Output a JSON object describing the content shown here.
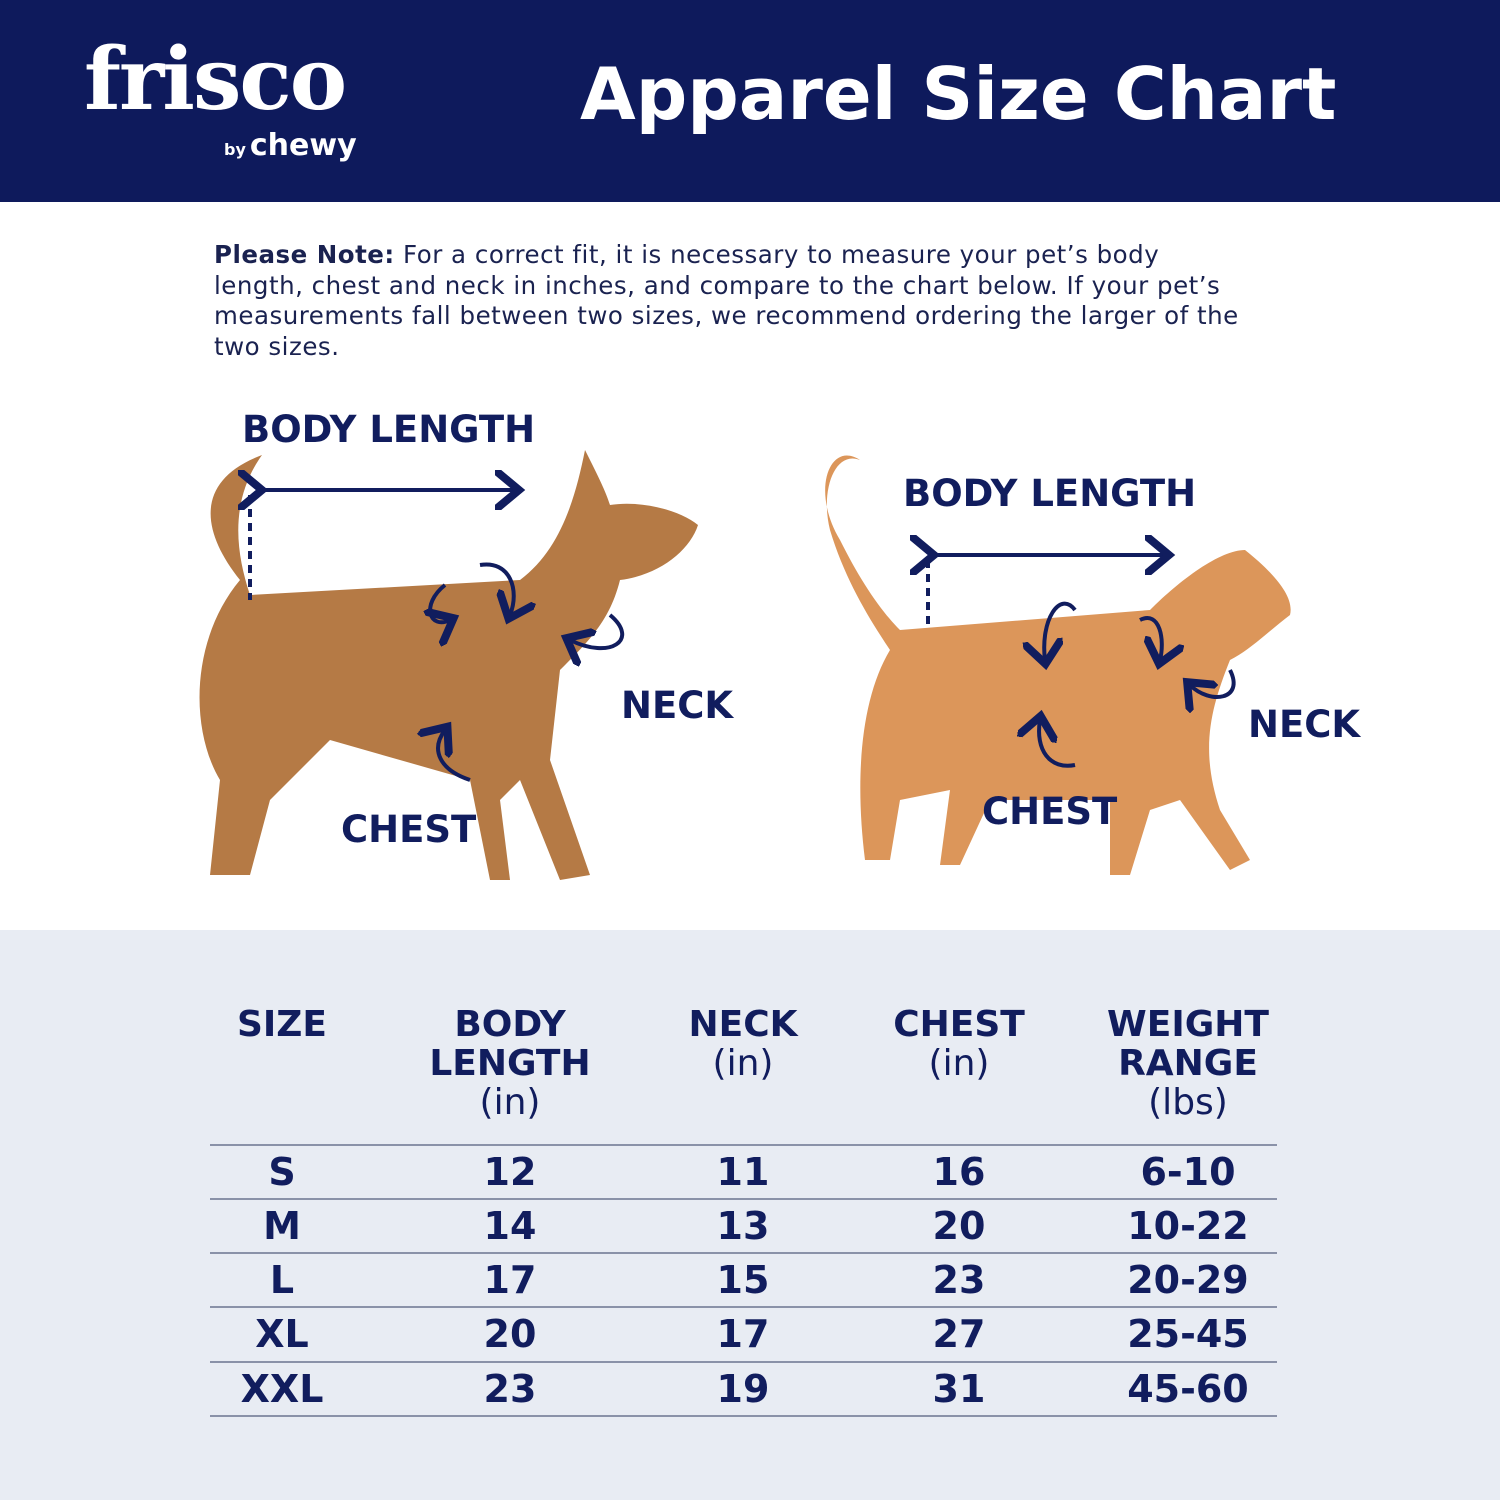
{
  "header": {
    "logo_text": "frisco",
    "logo_sub_by": "by",
    "logo_sub_brand": "chewy",
    "title": "Apparel Size Chart",
    "background": "#0e1a5c"
  },
  "note": {
    "lead": "Please Note:",
    "text": " For a correct fit, it is necessary to measure your pet’s body length, chest and neck in inches, and compare to the chart below. If your pet’s measurements fall between two sizes, we recommend ordering the larger of the two sizes."
  },
  "diagram": {
    "dog": {
      "body_length": "BODY LENGTH",
      "neck": "NECK",
      "chest": "CHEST"
    },
    "cat": {
      "body_length": "BODY LENGTH",
      "neck": "NECK",
      "chest": "CHEST"
    }
  },
  "table": {
    "headers": [
      {
        "title": "SIZE",
        "unit": ""
      },
      {
        "title": "BODY LENGTH",
        "unit": "(in)"
      },
      {
        "title": "NECK",
        "unit": "(in)"
      },
      {
        "title": "CHEST",
        "unit": "(in)"
      },
      {
        "title": "WEIGHT RANGE",
        "unit": "(lbs)"
      }
    ],
    "rows": [
      [
        "S",
        "12",
        "11",
        "16",
        "6-10"
      ],
      [
        "M",
        "14",
        "13",
        "20",
        "10-22"
      ],
      [
        "L",
        "17",
        "15",
        "23",
        "20-29"
      ],
      [
        "XL",
        "20",
        "17",
        "27",
        "25-45"
      ],
      [
        "XXL",
        "23",
        "19",
        "31",
        "45-60"
      ]
    ]
  }
}
